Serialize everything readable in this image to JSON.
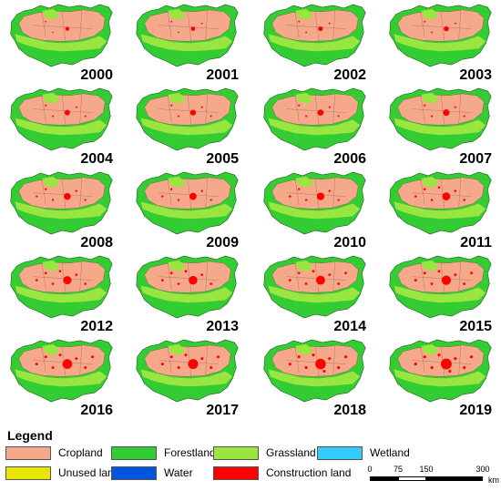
{
  "panels": [
    {
      "year": "2000",
      "construction_level": 0.05
    },
    {
      "year": "2001",
      "construction_level": 0.1
    },
    {
      "year": "2002",
      "construction_level": 0.15
    },
    {
      "year": "2003",
      "construction_level": 0.2
    },
    {
      "year": "2004",
      "construction_level": 0.25
    },
    {
      "year": "2005",
      "construction_level": 0.3
    },
    {
      "year": "2006",
      "construction_level": 0.35
    },
    {
      "year": "2007",
      "construction_level": 0.4
    },
    {
      "year": "2008",
      "construction_level": 0.45
    },
    {
      "year": "2009",
      "construction_level": 0.5
    },
    {
      "year": "2010",
      "construction_level": 0.55
    },
    {
      "year": "2011",
      "construction_level": 0.6
    },
    {
      "year": "2012",
      "construction_level": 0.65
    },
    {
      "year": "2013",
      "construction_level": 0.7
    },
    {
      "year": "2014",
      "construction_level": 0.75
    },
    {
      "year": "2015",
      "construction_level": 0.8
    },
    {
      "year": "2016",
      "construction_level": 0.85
    },
    {
      "year": "2017",
      "construction_level": 0.9
    },
    {
      "year": "2018",
      "construction_level": 0.95
    },
    {
      "year": "2019",
      "construction_level": 1.0
    }
  ],
  "legend": {
    "title": "Legend",
    "items": [
      {
        "label": "Cropland",
        "color": "#f5a98a"
      },
      {
        "label": "Forestland",
        "color": "#33cc33"
      },
      {
        "label": "Grassland",
        "color": "#99e640"
      },
      {
        "label": "Wetland",
        "color": "#33ccff"
      },
      {
        "label": "Unused land",
        "color": "#e6e600"
      },
      {
        "label": "Water",
        "color": "#0055dd"
      },
      {
        "label": "Construction land",
        "color": "#ff0000"
      }
    ]
  },
  "scale_bar": {
    "ticks": [
      "0",
      "75",
      "150",
      "300"
    ],
    "unit": "km"
  }
}
